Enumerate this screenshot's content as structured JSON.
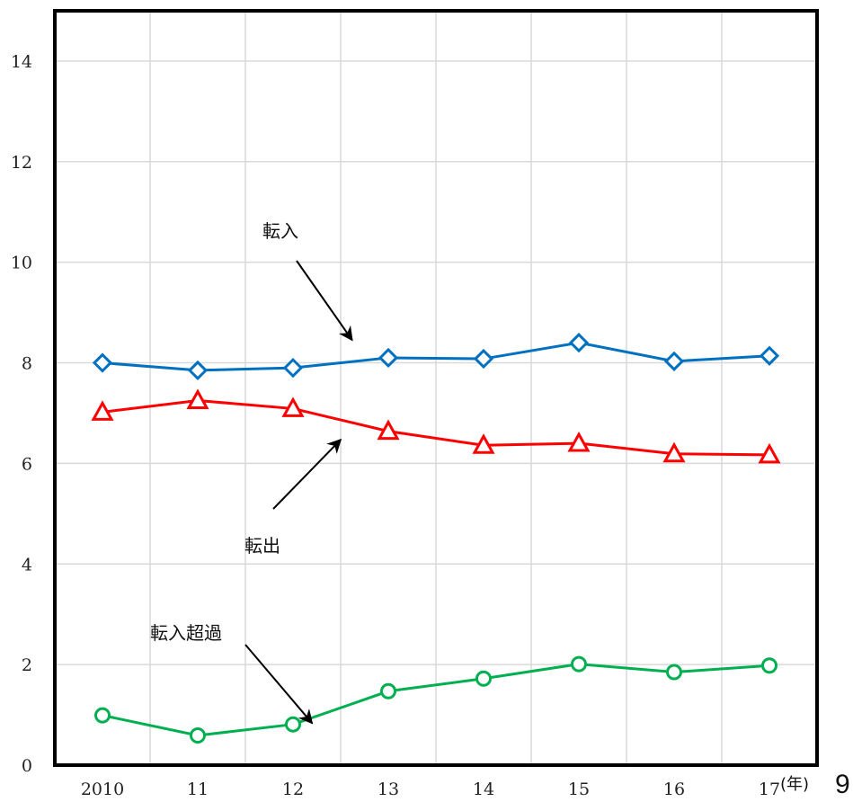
{
  "chart_data": {
    "type": "line",
    "x_tick_labels": [
      "2010",
      "11",
      "12",
      "13",
      "14",
      "15",
      "16",
      "17"
    ],
    "x_unit": "(年)",
    "y_ticks": [
      0,
      2,
      4,
      6,
      8,
      10,
      12,
      14
    ],
    "ylim": [
      0,
      15
    ],
    "grid": true,
    "series": [
      {
        "name": "転入",
        "marker": "diamond",
        "color": "#0070c0",
        "values": [
          8.0,
          7.85,
          7.9,
          8.1,
          8.08,
          8.4,
          8.03,
          8.14
        ]
      },
      {
        "name": "転出",
        "marker": "triangle",
        "color": "#ff0000",
        "values": [
          7.02,
          7.25,
          7.09,
          6.64,
          6.36,
          6.4,
          6.19,
          6.17
        ]
      },
      {
        "name": "転入超過",
        "marker": "circle",
        "color": "#00b050",
        "values": [
          0.99,
          0.59,
          0.81,
          1.47,
          1.72,
          2.01,
          1.85,
          1.98
        ]
      }
    ],
    "annotations": [
      {
        "text": "転入",
        "series": "転入",
        "points_to_x": 2.62
      },
      {
        "text": "転出",
        "series": "転出",
        "points_to_x": 2.5
      },
      {
        "text": "転入超過",
        "series": "転入超過",
        "points_to_x": 2.2
      }
    ]
  },
  "corner_text": "9"
}
